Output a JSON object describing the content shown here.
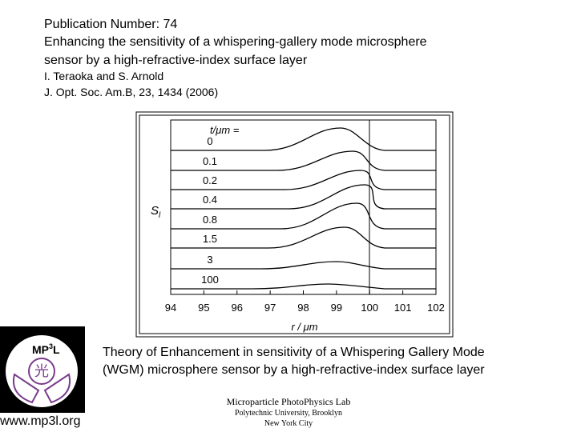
{
  "header": {
    "number_line": "Publication Number: 74",
    "title_lines": [
      "Enhancing the sensitivity of a whispering-gallery mode microsphere",
      "sensor by a high-refractive-index surface layer"
    ],
    "authors": "I. Teraoka and S. Arnold",
    "citation": "J. Opt. Soc. Am.B, 23, 1434 (2006)"
  },
  "figure": {
    "legend_title": "t/μm =",
    "curve_labels": [
      "0",
      "0.1",
      "0.2",
      "0.4",
      "0.8",
      "1.5",
      "3",
      "100"
    ],
    "y_label": "S",
    "y_label_sub": "l",
    "xticks": [
      "94",
      "95",
      "96",
      "97",
      "98",
      "99",
      "100",
      "101",
      "102"
    ],
    "x_label": "r / μm"
  },
  "caption": [
    "Theory of Enhancement in sensitivity of a Whispering Gallery Mode",
    "(WGM) microsphere sensor by a high-refractive-index surface layer"
  ],
  "logo": {
    "text": "MP",
    "sup": "3",
    "after": "L",
    "glyph": "光"
  },
  "website": "www.mp3l.org",
  "footer": [
    "Microparticle PhotoPhysics Lab",
    "Polytechnic University, Brooklyn",
    "New York City"
  ]
}
